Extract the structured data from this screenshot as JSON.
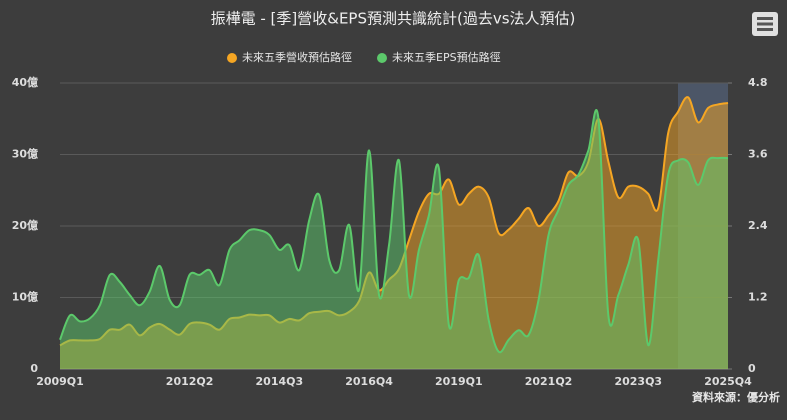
{
  "chart_data": {
    "type": "area",
    "title": "振樺電 - [季]營收&EPS預測共識統計(過去vs法人預估)",
    "source": "資料來源：優分析",
    "categories": [
      "2009Q1",
      null,
      null,
      null,
      null,
      null,
      null,
      null,
      null,
      null,
      null,
      null,
      null,
      "2012Q2",
      null,
      null,
      null,
      null,
      null,
      null,
      null,
      null,
      "2014Q3",
      null,
      null,
      null,
      null,
      null,
      null,
      null,
      null,
      "2016Q4",
      null,
      null,
      null,
      null,
      null,
      null,
      null,
      null,
      "2019Q1",
      null,
      null,
      null,
      null,
      null,
      null,
      null,
      null,
      "2021Q2",
      null,
      null,
      null,
      null,
      null,
      null,
      null,
      null,
      "2023Q3",
      null,
      null,
      null,
      null,
      null,
      null,
      null,
      null,
      "2025Q4"
    ],
    "series": [
      {
        "name": "未來五季營收預估路徑",
        "color": "#f5a623",
        "axis": "y",
        "values": [
          3.3,
          4,
          4,
          4,
          4.2,
          5.5,
          5.5,
          6.2,
          4.7,
          5.8,
          6.3,
          5.5,
          4.8,
          6.3,
          6.5,
          6.2,
          5.5,
          7,
          7.2,
          7.6,
          7.5,
          7.5,
          6.5,
          7,
          6.8,
          7.8,
          8,
          8.1,
          7.5,
          8,
          9.5,
          13.5,
          11,
          12.5,
          14,
          18,
          22,
          24.5,
          24.5,
          26.5,
          23,
          24.5,
          25.5,
          24,
          19,
          19.5,
          21,
          22.5,
          20,
          21.5,
          23.5,
          27.5,
          27,
          29,
          35,
          29,
          24,
          25.5,
          25.5,
          24.5,
          22.5,
          33,
          36,
          38,
          34.5,
          36.5,
          37,
          37.2
        ]
      },
      {
        "name": "未來五季EPS預估路徑",
        "color": "#5cc96b",
        "axis": "y2",
        "values": [
          0.49,
          0.9,
          0.8,
          0.85,
          1.07,
          1.58,
          1.46,
          1.24,
          1.07,
          1.3,
          1.73,
          1.16,
          1.07,
          1.58,
          1.58,
          1.66,
          1.41,
          2.0,
          2.16,
          2.33,
          2.33,
          2.25,
          2.0,
          2.08,
          1.66,
          2.5,
          2.92,
          1.83,
          1.66,
          2.42,
          1.33,
          3.67,
          1.24,
          2.08,
          3.5,
          1.24,
          2.0,
          2.58,
          3.37,
          0.74,
          1.49,
          1.53,
          1.91,
          0.82,
          0.29,
          0.49,
          0.65,
          0.57,
          1.16,
          2.25,
          2.67,
          3.09,
          3.26,
          3.67,
          4.21,
          0.9,
          1.24,
          1.75,
          2.16,
          0.4,
          1.83,
          3.26,
          3.5,
          3.47,
          3.09,
          3.5,
          3.54,
          3.54
        ]
      }
    ],
    "ylim": [
      0,
      40
    ],
    "yticks": [
      0,
      {
        "value": 10,
        "label": "10億"
      },
      {
        "value": 20,
        "label": "20億"
      },
      {
        "value": 30,
        "label": "30億"
      },
      {
        "value": 40,
        "label": "40億"
      }
    ],
    "y2lim": [
      0,
      4.8
    ],
    "y2ticks": [
      0,
      1.2,
      2.4,
      3.6,
      4.8
    ],
    "grid": true
  }
}
